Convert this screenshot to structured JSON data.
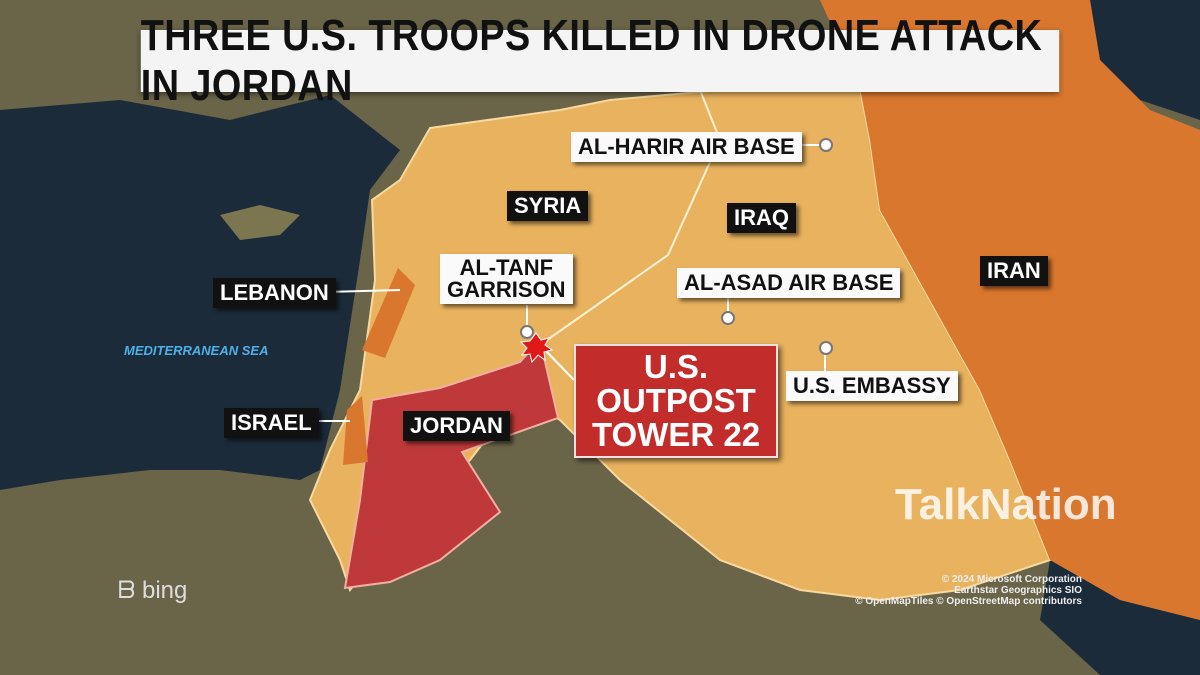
{
  "headline": "THREE U.S. TROOPS KILLED IN DRONE ATTACK IN JORDAN",
  "countries": {
    "syria": "SYRIA",
    "iraq": "IRAQ",
    "iran": "IRAN",
    "jordan": "JORDAN",
    "israel": "ISRAEL",
    "lebanon": "LEBANON"
  },
  "sites": {
    "al_harir": "AL-HARIR AIR BASE",
    "al_tanf_1": "AL-TANF",
    "al_tanf_2": "GARRISON",
    "al_asad": "AL-ASAD AIR BASE",
    "embassy": "U.S. EMBASSY"
  },
  "attack_site": {
    "line1": "U.S. OUTPOST",
    "line2": "TOWER 22"
  },
  "sea": "MEDITERRANEAN SEA",
  "watermark": "TalkNation",
  "basemap_logo": "bing",
  "copyright": [
    "© 2024 Microsoft Corporation",
    "Earthstar Geographics  SIO",
    "© OpenMapTiles © OpenStreetMap contributors"
  ],
  "colors": {
    "highlight": "#e9b25e",
    "iran": "#d9772e",
    "jordan": "#c0393a",
    "sea": "#1c2b3a"
  }
}
